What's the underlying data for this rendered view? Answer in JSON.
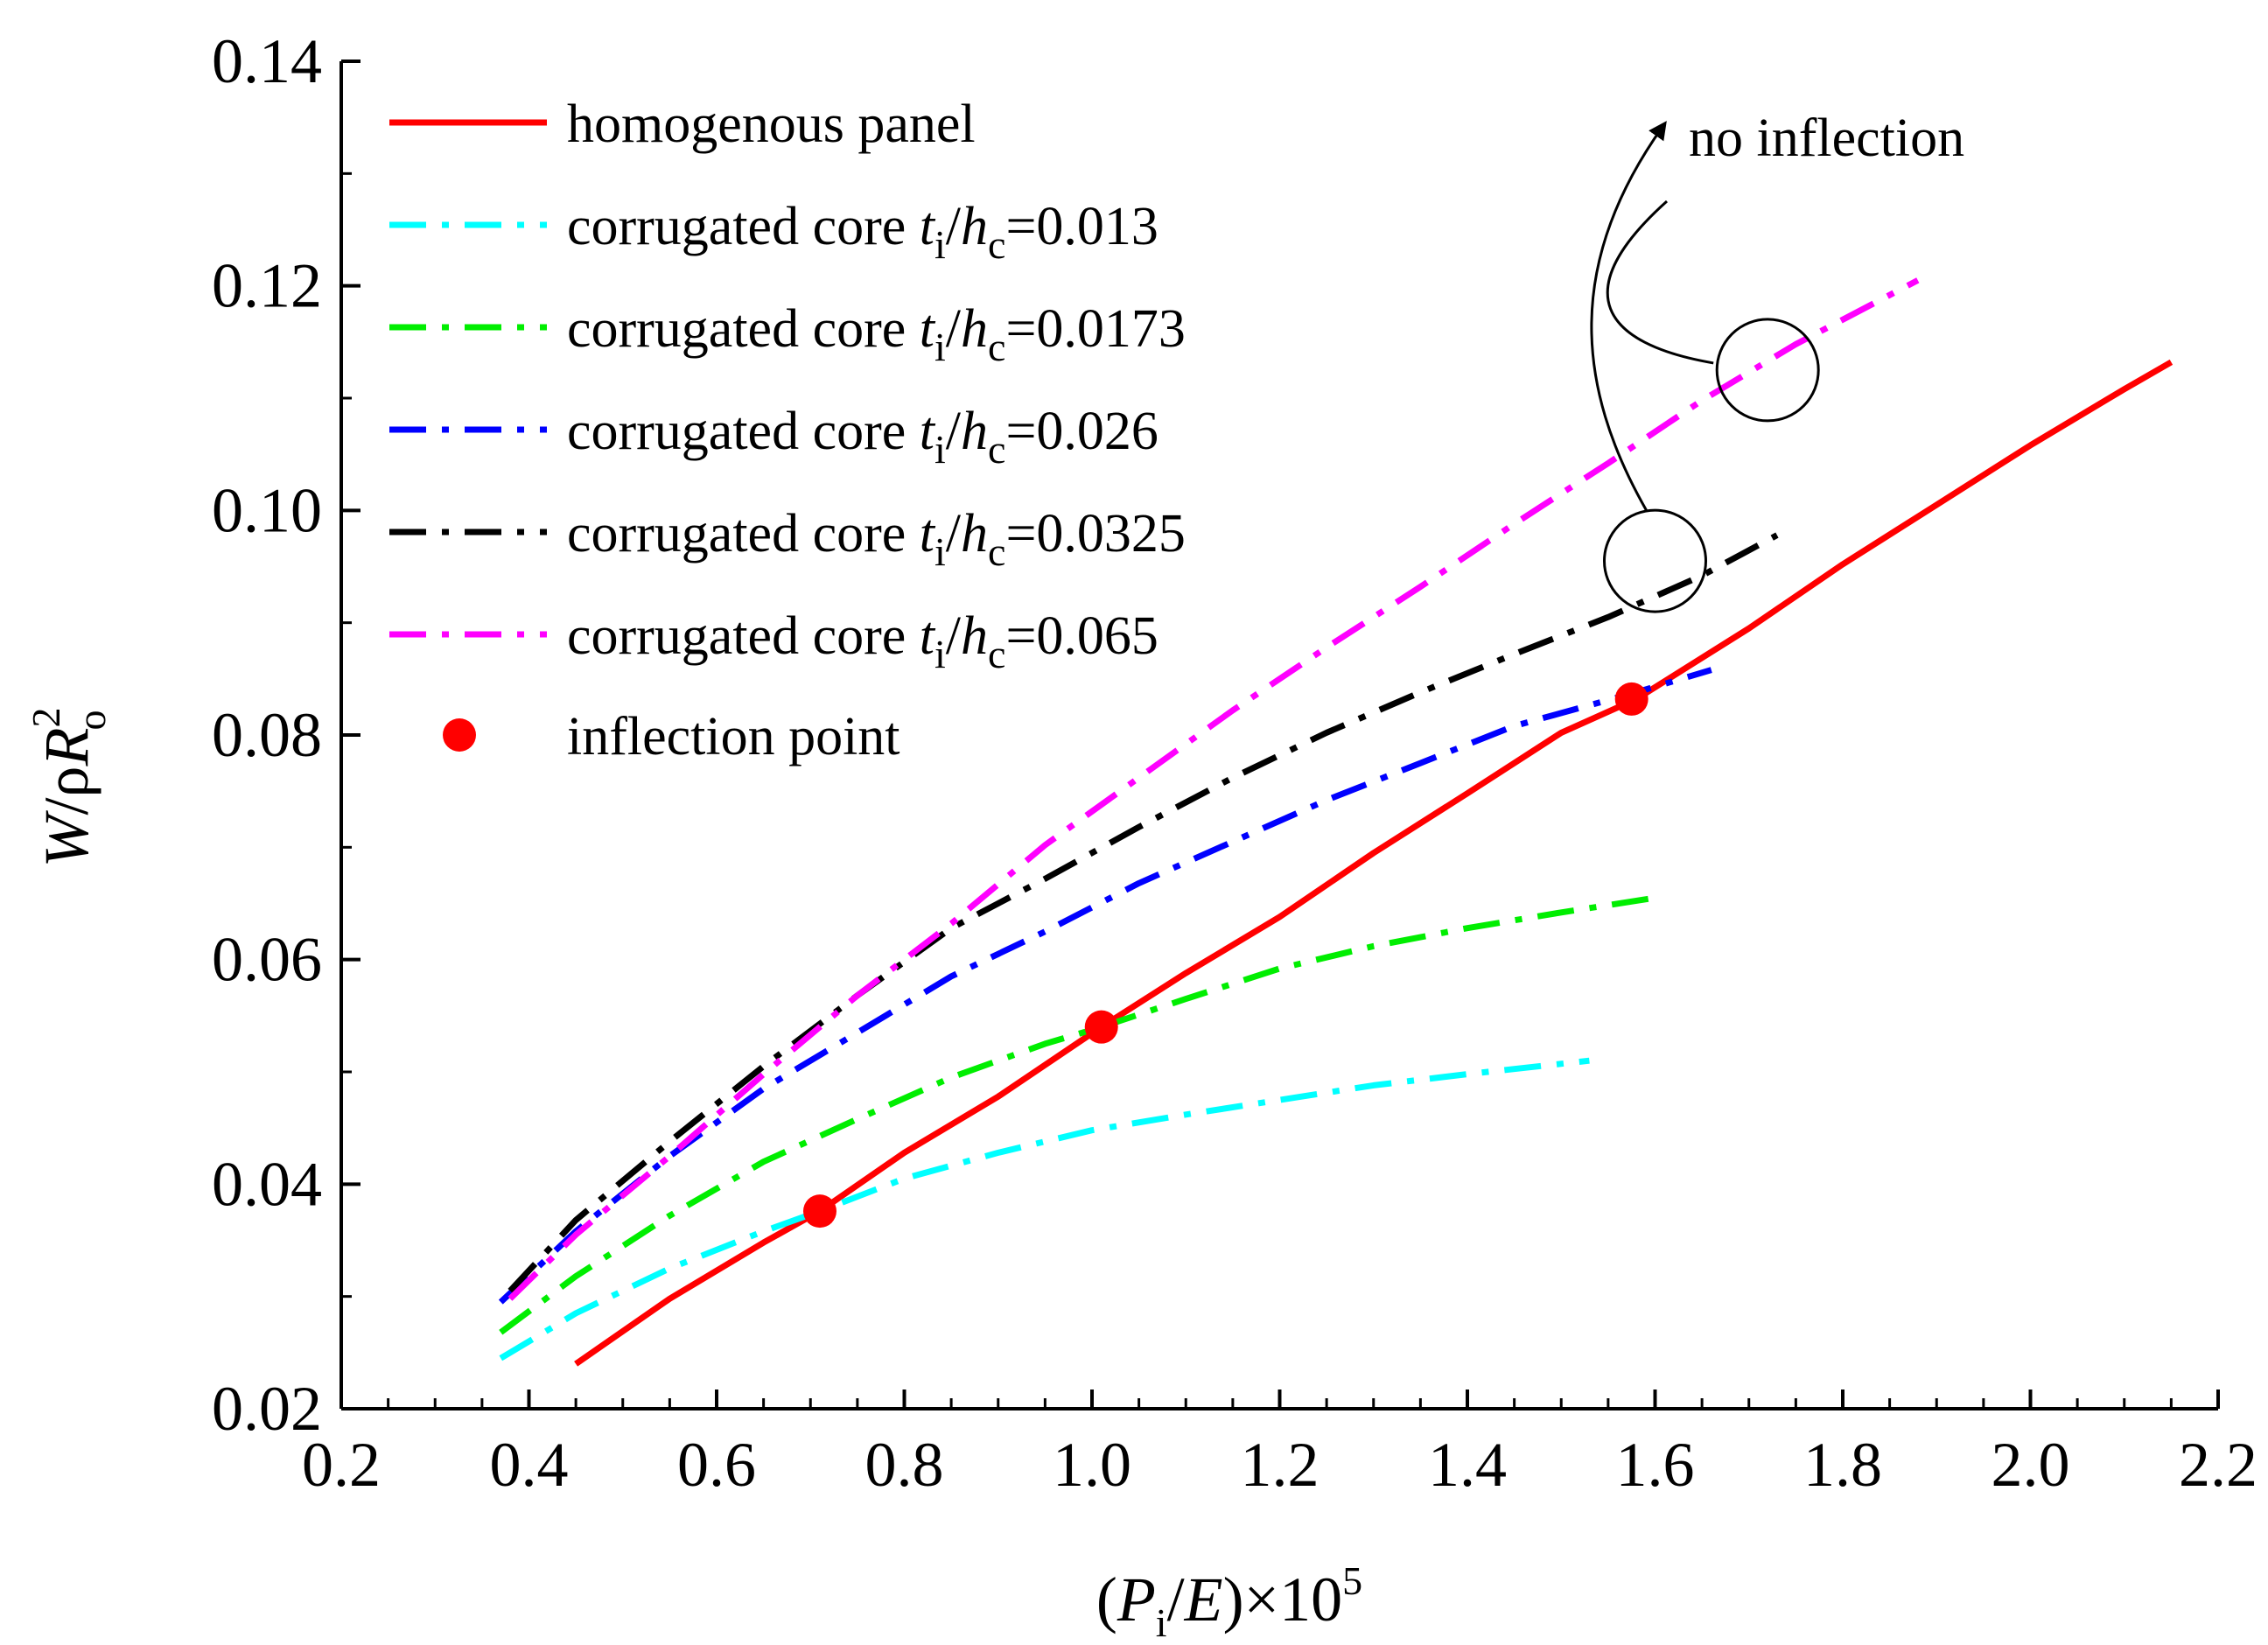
{
  "chart_data": {
    "type": "line",
    "xlabel": {
      "pre": "(",
      "var": "P",
      "sub": "i",
      "mid": "/",
      "var2": "E",
      "post": ")×10",
      "sup": "5"
    },
    "ylabel": {
      "var": "W",
      "mid": "/ρ",
      "var2": "R",
      "sup": "2",
      "sub": "o"
    },
    "xlim": [
      0.2,
      2.2
    ],
    "ylim": [
      0.02,
      0.14
    ],
    "x_ticks": [
      "0.2",
      "0.4",
      "0.6",
      "0.8",
      "1.0",
      "1.2",
      "1.4",
      "1.6",
      "1.8",
      "2.0",
      "2.2"
    ],
    "y_ticks": [
      "0.02",
      "0.04",
      "0.06",
      "0.08",
      "0.10",
      "0.12",
      "0.14"
    ],
    "legend_position": "top-left",
    "series": [
      {
        "name": "homogenous panel",
        "label_prefix": "homogenous panel",
        "ratio": "",
        "color": "#ff0000",
        "style": "solid",
        "x": [
          0.45,
          0.55,
          0.65,
          0.71,
          0.8,
          0.9,
          1.01,
          1.1,
          1.2,
          1.3,
          1.4,
          1.5,
          1.58,
          1.7,
          1.8,
          1.9,
          2.0,
          2.1,
          2.15
        ],
        "y": [
          0.024,
          0.0298,
          0.0348,
          0.0376,
          0.0428,
          0.0478,
          0.054,
          0.0588,
          0.0638,
          0.0695,
          0.0748,
          0.0802,
          0.0832,
          0.0895,
          0.0952,
          0.1005,
          0.1058,
          0.1108,
          0.1132
        ]
      },
      {
        "name": "corrugated core ti/hc=0.013",
        "label_prefix": "corrugated core ",
        "ratio": "=0.013",
        "color": "#00ffff",
        "style": "dashdot",
        "x": [
          0.37,
          0.45,
          0.55,
          0.65,
          0.71,
          0.8,
          0.9,
          1.0,
          1.1,
          1.2,
          1.3,
          1.4,
          1.53
        ],
        "y": [
          0.0245,
          0.0285,
          0.0325,
          0.0358,
          0.0376,
          0.0405,
          0.0428,
          0.0448,
          0.0462,
          0.0475,
          0.0488,
          0.0498,
          0.051
        ]
      },
      {
        "name": "corrugated core ti/hc=0.0173",
        "label_prefix": "corrugated core ",
        "ratio": "=0.0173",
        "color": "#00ee00",
        "style": "dashdot",
        "x": [
          0.37,
          0.45,
          0.55,
          0.65,
          0.75,
          0.85,
          0.95,
          1.01,
          1.1,
          1.2,
          1.3,
          1.4,
          1.5,
          1.6
        ],
        "y": [
          0.0268,
          0.0318,
          0.0372,
          0.042,
          0.0458,
          0.0495,
          0.0525,
          0.054,
          0.0565,
          0.0592,
          0.0612,
          0.0628,
          0.0642,
          0.0655
        ]
      },
      {
        "name": "corrugated core ti/hc=0.026",
        "label_prefix": "corrugated core ",
        "ratio": "=0.026",
        "color": "#0000ff",
        "style": "dashdot",
        "x": [
          0.37,
          0.45,
          0.55,
          0.65,
          0.75,
          0.85,
          0.95,
          1.05,
          1.15,
          1.25,
          1.35,
          1.45,
          1.58,
          1.66
        ],
        "y": [
          0.0295,
          0.0358,
          0.0425,
          0.0485,
          0.0535,
          0.0585,
          0.0625,
          0.0668,
          0.0705,
          0.0742,
          0.0775,
          0.0808,
          0.0838,
          0.0858
        ]
      },
      {
        "name": "corrugated core ti/hc=0.0325",
        "label_prefix": "corrugated core ",
        "ratio": "=0.0325",
        "color": "#000000",
        "style": "dashdot",
        "x": [
          0.38,
          0.45,
          0.55,
          0.65,
          0.75,
          0.85,
          0.95,
          1.05,
          1.15,
          1.25,
          1.35,
          1.45,
          1.55,
          1.65,
          1.73
        ],
        "y": [
          0.0305,
          0.0368,
          0.0438,
          0.0505,
          0.0568,
          0.0628,
          0.0672,
          0.0718,
          0.0762,
          0.0802,
          0.0838,
          0.0872,
          0.0905,
          0.0942,
          0.0978
        ]
      },
      {
        "name": "corrugated core ti/hc=0.065",
        "label_prefix": "corrugated core ",
        "ratio": "=0.065",
        "color": "#ff00ff",
        "style": "dashdot",
        "x": [
          0.38,
          0.45,
          0.55,
          0.65,
          0.75,
          0.85,
          0.95,
          1.05,
          1.15,
          1.25,
          1.35,
          1.45,
          1.55,
          1.65,
          1.75,
          1.88
        ],
        "y": [
          0.0298,
          0.0355,
          0.0425,
          0.0498,
          0.0568,
          0.0632,
          0.0702,
          0.0762,
          0.0822,
          0.0878,
          0.0932,
          0.0988,
          0.1042,
          0.1098,
          0.1148,
          0.1205
        ]
      }
    ],
    "inflection_points": {
      "name": "inflection point",
      "color": "#ff0000",
      "x": [
        0.71,
        1.01,
        1.575
      ],
      "y": [
        0.0376,
        0.054,
        0.0832
      ]
    },
    "annotation": {
      "text": "no inflection",
      "targets_x": [
        1.72,
        1.6
      ],
      "targets_y": [
        0.1125,
        0.0955
      ]
    },
    "legend_sub_var": {
      "t": "t",
      "t_sub": "i",
      "h": "h",
      "h_sub": "c",
      "slash": "/"
    }
  }
}
